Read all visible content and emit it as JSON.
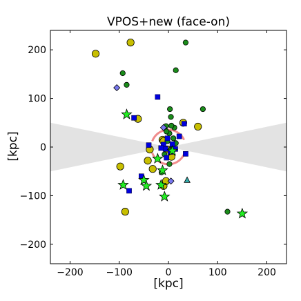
{
  "chart_data": {
    "type": "scatter",
    "title": "VPOS+new (face-on)",
    "xlabel": "[kpc]",
    "ylabel": "[kpc]",
    "xlim": [
      -240,
      240
    ],
    "ylim": [
      -240,
      240
    ],
    "xticks": [
      -200,
      -100,
      0,
      100,
      200
    ],
    "yticks": [
      -200,
      -100,
      0,
      100,
      200
    ],
    "xtick_labels": [
      "−200",
      "−100",
      "0",
      "100",
      "200"
    ],
    "ytick_labels": [
      "−200",
      "−100",
      "0",
      "100",
      "200"
    ],
    "grid": false,
    "legend": "none",
    "zone_of_avoidance": {
      "color": "#e3e3e3",
      "edge_half_height_at_xlim": 50
    },
    "halo_arc": {
      "color": "#f08c8c",
      "radius": 35,
      "center": [
        0,
        0
      ]
    },
    "series": [
      {
        "marker": "circle-large",
        "color": "#c8bf00",
        "points": [
          [
            -148,
            192
          ],
          [
            -77,
            215
          ],
          [
            -88,
            -133
          ],
          [
            -98,
            -40
          ],
          [
            -42,
            -28
          ],
          [
            -32,
            -45
          ],
          [
            -38,
            -5
          ],
          [
            -10,
            -80
          ],
          [
            -5,
            -70
          ],
          [
            -62,
            58
          ],
          [
            -12,
            15
          ],
          [
            -2,
            -5
          ],
          [
            6,
            -20
          ],
          [
            30,
            50
          ],
          [
            60,
            42
          ],
          [
            -10,
            12
          ]
        ]
      },
      {
        "marker": "circle-small",
        "color": "#1a8c1a",
        "points": [
          [
            35,
            215
          ],
          [
            -93,
            152
          ],
          [
            -85,
            128
          ],
          [
            15,
            158
          ],
          [
            3,
            78
          ],
          [
            70,
            78
          ],
          [
            5,
            62
          ],
          [
            -5,
            43
          ],
          [
            12,
            40
          ],
          [
            2,
            28
          ],
          [
            10,
            18
          ],
          [
            -2,
            12
          ],
          [
            15,
            8
          ],
          [
            5,
            -5
          ],
          [
            -8,
            -15
          ],
          [
            2,
            -35
          ],
          [
            -14,
            -52
          ],
          [
            120,
            -133
          ],
          [
            10,
            -2
          ],
          [
            -4,
            32
          ],
          [
            6,
            44
          ]
        ]
      },
      {
        "marker": "square",
        "color": "#0000dd",
        "points": [
          [
            -22,
            103
          ],
          [
            -70,
            60
          ],
          [
            -40,
            4
          ],
          [
            -10,
            5
          ],
          [
            -2,
            18
          ],
          [
            35,
            -14
          ],
          [
            32,
            48
          ],
          [
            -55,
            -60
          ],
          [
            -80,
            -90
          ],
          [
            4,
            -10
          ],
          [
            -6,
            -4
          ],
          [
            8,
            6
          ],
          [
            22,
            22
          ],
          [
            -4,
            -22
          ],
          [
            14,
            -4
          ],
          [
            -15,
            -2
          ]
        ]
      },
      {
        "marker": "star",
        "color": "#22ee22",
        "points": [
          [
            -85,
            67
          ],
          [
            -92,
            -78
          ],
          [
            -50,
            -68
          ],
          [
            -45,
            -80
          ],
          [
            -22,
            -24
          ],
          [
            -12,
            -48
          ],
          [
            -15,
            -78
          ],
          [
            -8,
            -102
          ],
          [
            150,
            -137
          ],
          [
            8,
            -8
          ]
        ]
      },
      {
        "marker": "diamond",
        "color": "#7777ee",
        "points": [
          [
            -105,
            122
          ],
          [
            5,
            -70
          ],
          [
            -10,
            40
          ]
        ]
      },
      {
        "marker": "triangle",
        "color": "#33aaaa",
        "points": [
          [
            38,
            -68
          ]
        ]
      }
    ]
  }
}
